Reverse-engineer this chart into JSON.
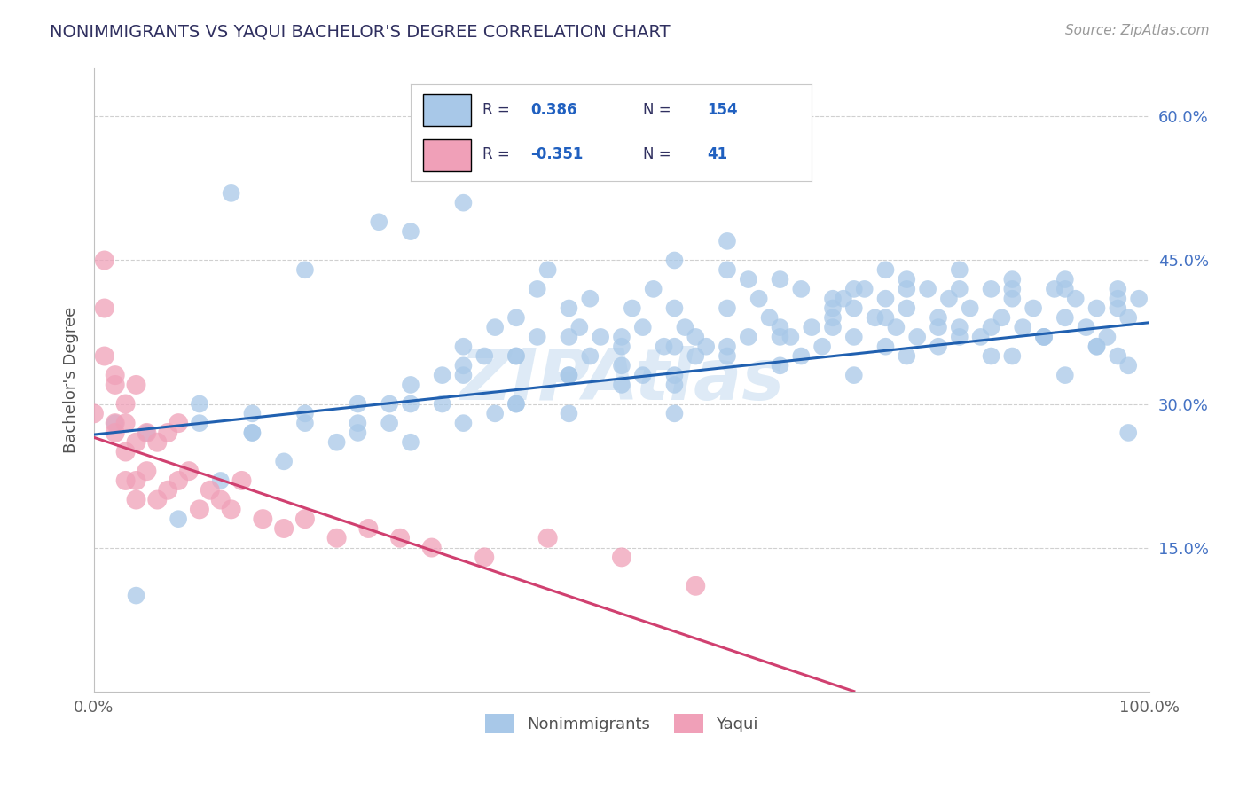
{
  "title": "NONIMMIGRANTS VS YAQUI BACHELOR'S DEGREE CORRELATION CHART",
  "source_text": "Source: ZipAtlas.com",
  "ylabel": "Bachelor's Degree",
  "xlim": [
    0.0,
    1.0
  ],
  "ylim": [
    0.0,
    0.65
  ],
  "xtick_labels": [
    "0.0%",
    "100.0%"
  ],
  "ytick_labels": [
    "15.0%",
    "30.0%",
    "45.0%",
    "60.0%"
  ],
  "ytick_positions": [
    0.15,
    0.3,
    0.45,
    0.6
  ],
  "r_nonimmigrants": "0.386",
  "n_nonimmigrants": "154",
  "r_yaqui": "-0.351",
  "n_yaqui": "41",
  "blue_scatter_color": "#a8c8e8",
  "blue_line_color": "#2060b0",
  "pink_scatter_color": "#f0a0b8",
  "pink_line_color": "#d04070",
  "watermark_color": "#c8ddf0",
  "title_color": "#303060",
  "legend_value_color": "#2060c0",
  "legend_label_color": "#303060",
  "background_color": "#ffffff",
  "grid_color": "#d0d0d0",
  "ytick_color": "#4472c4",
  "xtick_color": "#606060",
  "blue_line_x": [
    0.0,
    1.0
  ],
  "blue_line_y": [
    0.268,
    0.385
  ],
  "pink_line_x": [
    0.0,
    0.72
  ],
  "pink_line_y": [
    0.265,
    0.0
  ],
  "nonimmigrants_x": [
    0.13,
    0.2,
    0.27,
    0.3,
    0.35,
    0.38,
    0.4,
    0.42,
    0.43,
    0.45,
    0.46,
    0.47,
    0.48,
    0.5,
    0.5,
    0.51,
    0.52,
    0.53,
    0.54,
    0.55,
    0.56,
    0.57,
    0.58,
    0.6,
    0.6,
    0.62,
    0.63,
    0.64,
    0.65,
    0.66,
    0.67,
    0.68,
    0.69,
    0.7,
    0.71,
    0.72,
    0.73,
    0.74,
    0.75,
    0.76,
    0.77,
    0.78,
    0.79,
    0.8,
    0.81,
    0.82,
    0.83,
    0.84,
    0.85,
    0.86,
    0.87,
    0.88,
    0.89,
    0.9,
    0.91,
    0.92,
    0.93,
    0.94,
    0.95,
    0.96,
    0.97,
    0.98,
    0.99,
    0.6,
    0.65,
    0.7,
    0.75,
    0.8,
    0.85,
    0.9,
    0.95,
    0.98,
    0.55,
    0.6,
    0.65,
    0.7,
    0.75,
    0.55,
    0.6,
    0.65,
    0.7,
    0.75,
    0.8,
    0.85,
    0.9,
    0.95,
    0.98,
    0.55,
    0.45,
    0.4,
    0.35,
    0.3,
    0.25,
    0.15,
    0.1,
    0.05,
    0.55,
    0.5,
    0.45,
    0.4,
    0.35,
    0.3,
    0.25,
    0.2,
    0.15,
    0.1,
    0.28,
    0.33,
    0.37,
    0.42,
    0.47,
    0.52,
    0.57,
    0.62,
    0.67,
    0.72,
    0.77,
    0.82,
    0.87,
    0.92,
    0.97,
    0.72,
    0.77,
    0.82,
    0.87,
    0.92,
    0.97,
    0.72,
    0.77,
    0.82,
    0.87,
    0.92,
    0.97,
    0.45,
    0.4,
    0.35,
    0.3,
    0.25,
    0.2,
    0.15,
    0.38,
    0.33,
    0.28,
    0.23,
    0.18,
    0.12,
    0.08,
    0.04,
    0.02,
    0.55,
    0.5,
    0.45,
    0.4,
    0.35
  ],
  "nonimmigrants_y": [
    0.52,
    0.44,
    0.49,
    0.48,
    0.51,
    0.38,
    0.39,
    0.42,
    0.44,
    0.4,
    0.38,
    0.41,
    0.37,
    0.37,
    0.34,
    0.4,
    0.38,
    0.42,
    0.36,
    0.4,
    0.38,
    0.37,
    0.36,
    0.44,
    0.4,
    0.43,
    0.41,
    0.39,
    0.38,
    0.37,
    0.42,
    0.38,
    0.36,
    0.4,
    0.41,
    0.37,
    0.42,
    0.39,
    0.41,
    0.38,
    0.4,
    0.37,
    0.42,
    0.39,
    0.41,
    0.38,
    0.4,
    0.37,
    0.42,
    0.39,
    0.41,
    0.38,
    0.4,
    0.37,
    0.42,
    0.39,
    0.41,
    0.38,
    0.4,
    0.37,
    0.42,
    0.39,
    0.41,
    0.36,
    0.34,
    0.38,
    0.39,
    0.36,
    0.38,
    0.37,
    0.36,
    0.27,
    0.45,
    0.47,
    0.43,
    0.41,
    0.44,
    0.33,
    0.35,
    0.37,
    0.39,
    0.36,
    0.38,
    0.35,
    0.37,
    0.36,
    0.34,
    0.29,
    0.29,
    0.3,
    0.33,
    0.26,
    0.27,
    0.29,
    0.3,
    0.27,
    0.32,
    0.32,
    0.33,
    0.35,
    0.34,
    0.3,
    0.28,
    0.28,
    0.27,
    0.28,
    0.3,
    0.33,
    0.35,
    0.37,
    0.35,
    0.33,
    0.35,
    0.37,
    0.35,
    0.33,
    0.35,
    0.37,
    0.35,
    0.33,
    0.35,
    0.4,
    0.42,
    0.44,
    0.43,
    0.42,
    0.4,
    0.42,
    0.43,
    0.42,
    0.42,
    0.43,
    0.41,
    0.37,
    0.35,
    0.36,
    0.32,
    0.3,
    0.29,
    0.27,
    0.29,
    0.3,
    0.28,
    0.26,
    0.24,
    0.22,
    0.18,
    0.1,
    0.28,
    0.36,
    0.36,
    0.33,
    0.3,
    0.28
  ],
  "yaqui_x": [
    0.0,
    0.01,
    0.01,
    0.01,
    0.02,
    0.02,
    0.02,
    0.02,
    0.03,
    0.03,
    0.03,
    0.03,
    0.04,
    0.04,
    0.04,
    0.04,
    0.05,
    0.05,
    0.06,
    0.06,
    0.07,
    0.07,
    0.08,
    0.08,
    0.09,
    0.1,
    0.11,
    0.12,
    0.13,
    0.14,
    0.16,
    0.18,
    0.2,
    0.23,
    0.26,
    0.29,
    0.32,
    0.37,
    0.43,
    0.5,
    0.57
  ],
  "yaqui_y": [
    0.29,
    0.45,
    0.4,
    0.35,
    0.32,
    0.27,
    0.28,
    0.33,
    0.25,
    0.28,
    0.22,
    0.3,
    0.2,
    0.26,
    0.22,
    0.32,
    0.27,
    0.23,
    0.2,
    0.26,
    0.21,
    0.27,
    0.22,
    0.28,
    0.23,
    0.19,
    0.21,
    0.2,
    0.19,
    0.22,
    0.18,
    0.17,
    0.18,
    0.16,
    0.17,
    0.16,
    0.15,
    0.14,
    0.16,
    0.14,
    0.11
  ]
}
